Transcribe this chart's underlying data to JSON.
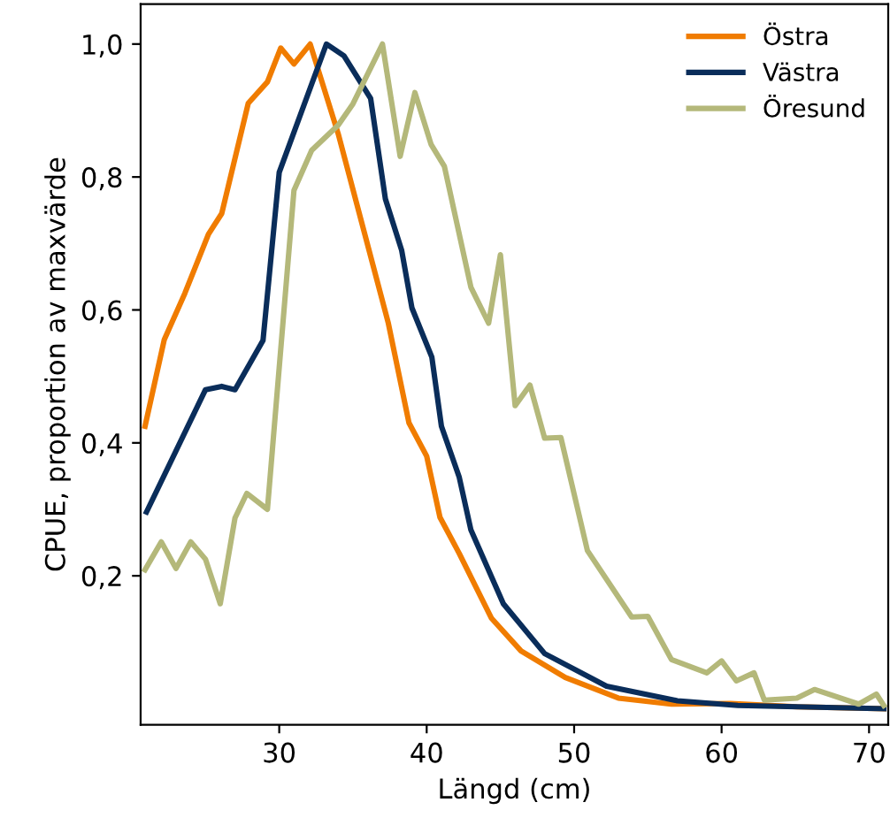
{
  "chart_data": {
    "type": "line",
    "xlabel": "Längd (cm)",
    "ylabel": "CPUE, proportion av maxvärde",
    "xlim": [
      20.6,
      71.3
    ],
    "ylim": [
      -0.024,
      1.06
    ],
    "xticks": [
      30,
      40,
      50,
      60,
      70
    ],
    "yticks": [
      {
        "value": 0.2,
        "label": "0,2"
      },
      {
        "value": 0.4,
        "label": "0,4"
      },
      {
        "value": 0.6,
        "label": "0,6"
      },
      {
        "value": 0.8,
        "label": "0,8"
      },
      {
        "value": 1.0,
        "label": "1,0"
      }
    ],
    "grid": false,
    "legend": "top right",
    "marker": "none",
    "line_style": "solid",
    "series": [
      {
        "name": "Östra",
        "color": "#f07c00",
        "x": [
          20.9,
          22.2,
          23.6,
          25.2,
          26.1,
          27.9,
          29.2,
          30.1,
          31.0,
          32.1,
          34.0,
          37.4,
          38.8,
          40.0,
          40.9,
          42.2,
          44.4,
          46.4,
          49.4,
          53.0,
          56.6,
          60.6,
          65.1,
          71.0
        ],
        "values": [
          0.425,
          0.555,
          0.625,
          0.714,
          0.745,
          0.911,
          0.943,
          0.994,
          0.97,
          1.0,
          0.865,
          0.58,
          0.43,
          0.38,
          0.288,
          0.234,
          0.136,
          0.087,
          0.047,
          0.016,
          0.007,
          0.008,
          0.003,
          0.0
        ]
      },
      {
        "name": "Västra",
        "color": "#0a2d5a",
        "x": [
          21.0,
          25.0,
          26.1,
          27.0,
          28.9,
          30.0,
          33.2,
          34.4,
          36.2,
          37.2,
          38.3,
          39.0,
          40.35,
          41.0,
          42.2,
          43.0,
          45.2,
          48.0,
          52.2,
          57.0,
          61.1,
          71.0
        ],
        "values": [
          0.296,
          0.48,
          0.485,
          0.48,
          0.554,
          0.807,
          1.0,
          0.982,
          0.918,
          0.767,
          0.69,
          0.603,
          0.529,
          0.425,
          0.349,
          0.269,
          0.158,
          0.083,
          0.034,
          0.012,
          0.005,
          0.0
        ]
      },
      {
        "name": "Öresund",
        "color": "#b4b87a",
        "x": [
          20.9,
          22.0,
          23.0,
          24.0,
          25.0,
          26.0,
          27.0,
          27.8,
          29.2,
          31.0,
          32.2,
          34.0,
          35.0,
          37.0,
          38.2,
          39.2,
          40.3,
          41.2,
          43.0,
          44.2,
          45.0,
          46.0,
          47.0,
          48.0,
          49.1,
          50.9,
          53.9,
          55.0,
          56.6,
          59.0,
          60.0,
          61.0,
          62.2,
          62.9,
          65.1,
          66.3,
          69.3,
          70.5,
          71.0
        ],
        "values": [
          0.209,
          0.251,
          0.211,
          0.251,
          0.225,
          0.158,
          0.287,
          0.324,
          0.3,
          0.78,
          0.84,
          0.878,
          0.91,
          1.0,
          0.831,
          0.927,
          0.849,
          0.816,
          0.634,
          0.58,
          0.683,
          0.456,
          0.487,
          0.407,
          0.408,
          0.238,
          0.138,
          0.139,
          0.074,
          0.054,
          0.072,
          0.042,
          0.054,
          0.013,
          0.016,
          0.029,
          0.007,
          0.022,
          0.005
        ]
      }
    ]
  }
}
